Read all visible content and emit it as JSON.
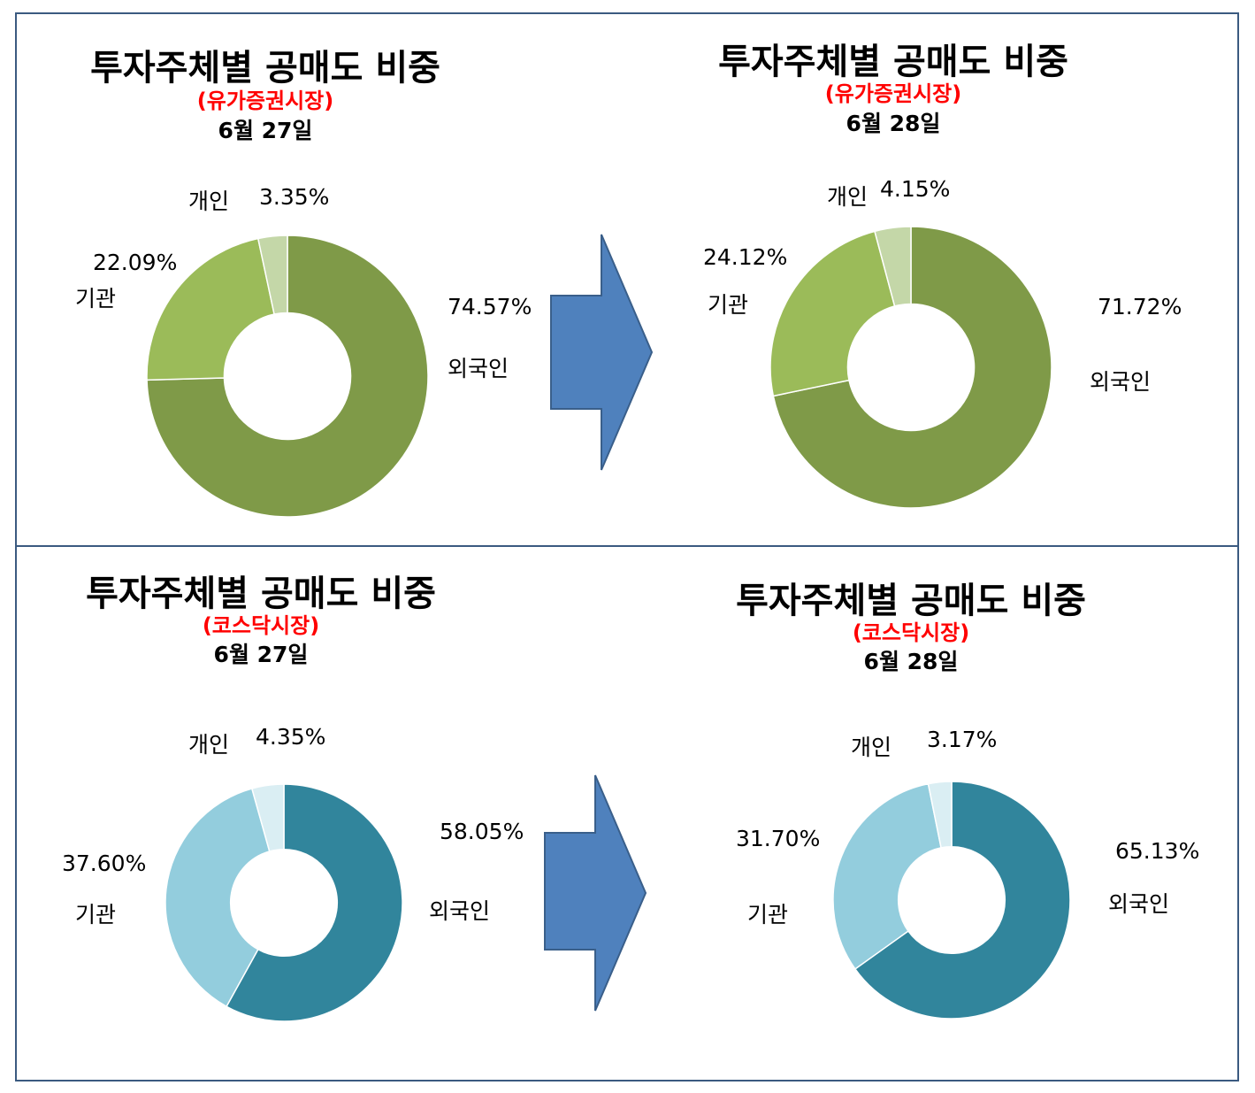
{
  "chart_data": [
    {
      "type": "pie",
      "title": "투자주체별 공매도 비중",
      "subtitle": "(유가증권시장)",
      "date": "6월 27일",
      "slices": [
        {
          "name": "외국인",
          "label": "외국인",
          "value": 74.57,
          "value_label": "74.57%",
          "color": "#7f9a48"
        },
        {
          "name": "기관",
          "label": "기관",
          "value": 22.09,
          "value_label": "22.09%",
          "color": "#9bbb59"
        },
        {
          "name": "개인",
          "label": "개인",
          "value": 3.35,
          "value_label": "3.35%",
          "color": "#c4d7a8"
        }
      ]
    },
    {
      "type": "pie",
      "title": "투자주체별 공매도 비중",
      "subtitle": "(유가증권시장)",
      "date": "6월 28일",
      "slices": [
        {
          "name": "외국인",
          "label": "외국인",
          "value": 71.72,
          "value_label": "71.72%",
          "color": "#7f9a48"
        },
        {
          "name": "기관",
          "label": "기관",
          "value": 24.12,
          "value_label": "24.12%",
          "color": "#9bbb59"
        },
        {
          "name": "개인",
          "label": "개인",
          "value": 4.15,
          "value_label": "4.15%",
          "color": "#c4d7a8"
        }
      ]
    },
    {
      "type": "pie",
      "title": "투자주체별 공매도 비중",
      "subtitle": "(코스닥시장)",
      "date": "6월 27일",
      "slices": [
        {
          "name": "외국인",
          "label": "외국인",
          "value": 58.05,
          "value_label": "58.05%",
          "color": "#31859c"
        },
        {
          "name": "기관",
          "label": "기관",
          "value": 37.6,
          "value_label": "37.60%",
          "color": "#93cddd"
        },
        {
          "name": "개인",
          "label": "개인",
          "value": 4.35,
          "value_label": "4.35%",
          "color": "#daeef3"
        }
      ]
    },
    {
      "type": "pie",
      "title": "투자주체별 공매도 비중",
      "subtitle": "(코스닥시장)",
      "date": "6월 28일",
      "slices": [
        {
          "name": "외국인",
          "label": "외국인",
          "value": 65.13,
          "value_label": "65.13%",
          "color": "#31859c"
        },
        {
          "name": "기관",
          "label": "기관",
          "value": 31.7,
          "value_label": "31.70%",
          "color": "#93cddd"
        },
        {
          "name": "개인",
          "label": "개인",
          "value": 3.17,
          "value_label": "3.17%",
          "color": "#daeef3"
        }
      ]
    }
  ],
  "arrow_color": "#4f81bd"
}
